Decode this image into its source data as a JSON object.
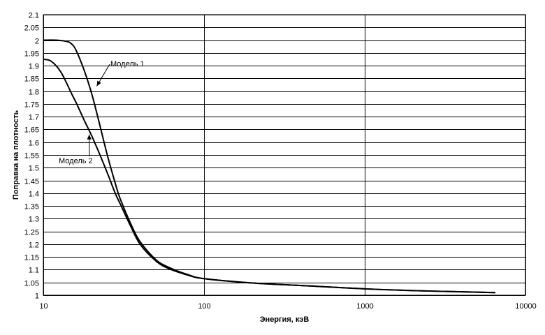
{
  "chart_data": {
    "type": "line",
    "title": "",
    "xlabel": "Энергия, кэВ",
    "ylabel": "Поправка на плотность",
    "x_scale": "log",
    "xlim": [
      10,
      10000
    ],
    "ylim": [
      1,
      2.1
    ],
    "x_ticks": [
      "10",
      "100",
      "1000",
      "10000"
    ],
    "y_ticks": [
      "1",
      "1.05",
      "1.1",
      "1.15",
      "1.2",
      "1.25",
      "1.3",
      "1.35",
      "1.4",
      "1.45",
      "1.5",
      "1.55",
      "1.6",
      "1.65",
      "1.7",
      "1.75",
      "1.8",
      "1.85",
      "1.9",
      "1.95",
      "2",
      "2.05",
      "2.1"
    ],
    "grid": "horizontal and vertical",
    "legend": "none",
    "series": [
      {
        "name": "Модель 1",
        "x": [
          10,
          12,
          14,
          15,
          16,
          18,
          20,
          22,
          25,
          28,
          30,
          35,
          40,
          50,
          60,
          80,
          100,
          200,
          500,
          1000,
          2000,
          5000,
          6500
        ],
        "y": [
          2.0,
          2.0,
          1.995,
          1.985,
          1.96,
          1.88,
          1.79,
          1.69,
          1.55,
          1.44,
          1.38,
          1.28,
          1.21,
          1.14,
          1.11,
          1.08,
          1.065,
          1.048,
          1.035,
          1.025,
          1.018,
          1.012,
          1.01
        ]
      },
      {
        "name": "Модель 2",
        "x": [
          10,
          11,
          12,
          13,
          14,
          15,
          16,
          18,
          20,
          22,
          25,
          28,
          30,
          35,
          40,
          50,
          60,
          80,
          100,
          200,
          500,
          1000,
          2000,
          5000,
          6500
        ],
        "y": [
          1.925,
          1.92,
          1.9,
          1.87,
          1.83,
          1.79,
          1.755,
          1.685,
          1.625,
          1.565,
          1.48,
          1.4,
          1.36,
          1.27,
          1.2,
          1.135,
          1.105,
          1.078,
          1.065,
          1.048,
          1.035,
          1.025,
          1.018,
          1.012,
          1.01
        ]
      }
    ],
    "annotations": [
      {
        "text": "Модель 1",
        "series": 0,
        "arrow_to": [
          21.5,
          1.82
        ]
      },
      {
        "text": "Модель 2",
        "series": 1,
        "arrow_to": [
          19.3,
          1.63
        ]
      }
    ]
  }
}
